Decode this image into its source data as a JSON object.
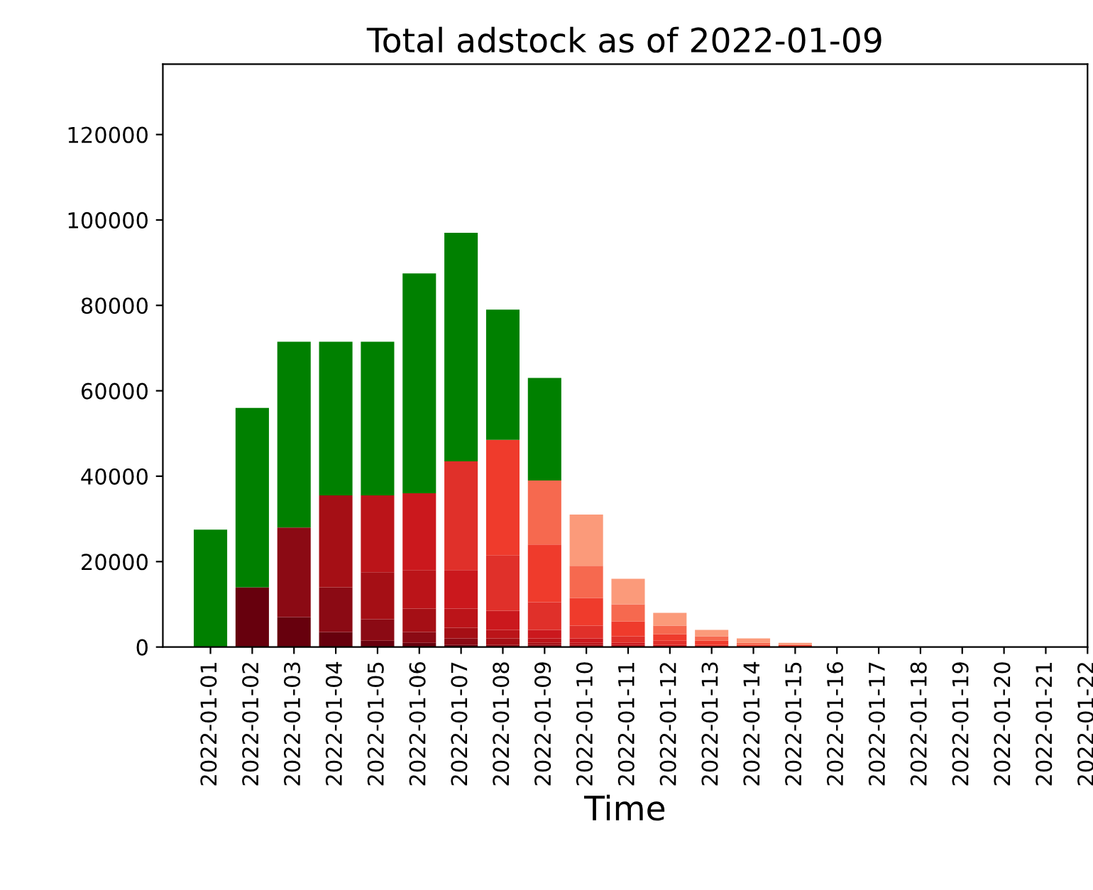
{
  "chart_data": {
    "type": "bar",
    "stacked": true,
    "title": "Total adstock as of 2022-01-09",
    "xlabel": "Time",
    "categories": [
      "2022-01-01",
      "2022-01-02",
      "2022-01-03",
      "2022-01-04",
      "2022-01-05",
      "2022-01-06",
      "2022-01-07",
      "2022-01-08",
      "2022-01-09",
      "2022-01-10",
      "2022-01-11",
      "2022-01-12",
      "2022-01-13",
      "2022-01-14",
      "2022-01-15",
      "2022-01-16",
      "2022-01-17",
      "2022-01-18",
      "2022-01-19",
      "2022-01-20",
      "2022-01-21",
      "2022-01-22"
    ],
    "series": [
      {
        "color": "#67000d",
        "values": [
          null,
          14000,
          7000,
          3500,
          1500,
          1000,
          500,
          null,
          null,
          null,
          null,
          null,
          null,
          null,
          null,
          null,
          null,
          null,
          null,
          null,
          null,
          null
        ]
      },
      {
        "color": "#8b0a14",
        "values": [
          null,
          null,
          21000,
          10500,
          5000,
          2500,
          1500,
          500,
          500,
          null,
          null,
          null,
          null,
          null,
          null,
          null,
          null,
          null,
          null,
          null,
          null,
          null
        ]
      },
      {
        "color": "#a50f15",
        "values": [
          null,
          null,
          null,
          21500,
          11000,
          5500,
          2500,
          1500,
          500,
          500,
          null,
          null,
          null,
          null,
          null,
          null,
          null,
          null,
          null,
          null,
          null,
          null
        ]
      },
      {
        "color": "#bb1419",
        "values": [
          null,
          null,
          null,
          null,
          18000,
          9000,
          4500,
          2000,
          1000,
          500,
          500,
          null,
          null,
          null,
          null,
          null,
          null,
          null,
          null,
          null,
          null,
          null
        ]
      },
      {
        "color": "#cb181d",
        "values": [
          null,
          null,
          null,
          null,
          null,
          18000,
          9000,
          4500,
          2000,
          1000,
          500,
          500,
          null,
          null,
          null,
          null,
          null,
          null,
          null,
          null,
          null,
          null
        ]
      },
      {
        "color": "#e0302a",
        "values": [
          null,
          null,
          null,
          null,
          null,
          null,
          25500,
          13000,
          6500,
          3000,
          1500,
          1000,
          500,
          null,
          null,
          null,
          null,
          null,
          null,
          null,
          null,
          null
        ]
      },
      {
        "color": "#ef3b2c",
        "values": [
          null,
          null,
          null,
          null,
          null,
          null,
          null,
          27000,
          13500,
          6500,
          3500,
          1500,
          1000,
          500,
          500,
          null,
          null,
          null,
          null,
          null,
          null,
          null
        ]
      },
      {
        "color": "#f6694f",
        "values": [
          null,
          null,
          null,
          null,
          null,
          null,
          null,
          null,
          15000,
          7500,
          4000,
          2000,
          1000,
          500,
          null,
          null,
          null,
          null,
          null,
          null,
          null,
          null
        ]
      },
      {
        "color": "#fb9a7a",
        "values": [
          null,
          null,
          null,
          null,
          null,
          null,
          null,
          null,
          null,
          12000,
          6000,
          3000,
          1500,
          1000,
          500,
          null,
          null,
          null,
          null,
          null,
          null,
          null
        ]
      },
      {
        "color": "#008000",
        "values": [
          27500,
          42000,
          43500,
          36000,
          36000,
          51500,
          53500,
          30500,
          24000,
          null,
          null,
          null,
          null,
          null,
          null,
          null,
          null,
          null,
          null,
          null,
          null,
          null
        ]
      }
    ],
    "ylim": [
      0,
      136500
    ],
    "yticks": [
      0,
      20000,
      40000,
      60000,
      80000,
      100000,
      120000
    ],
    "grid": false
  }
}
